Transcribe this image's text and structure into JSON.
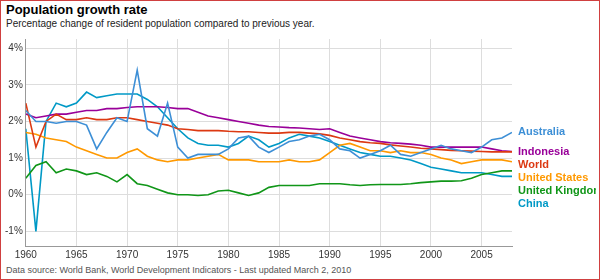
{
  "chart_data": {
    "type": "line",
    "title": "Population growth rate",
    "subtitle": "Percentage change of resident population compared to previous year.",
    "source": "Data source: World Bank, World Development Indicators - Last updated March 2, 2010",
    "x": [
      1960,
      1961,
      1962,
      1963,
      1964,
      1965,
      1966,
      1967,
      1968,
      1969,
      1970,
      1971,
      1972,
      1973,
      1974,
      1975,
      1976,
      1977,
      1978,
      1979,
      1980,
      1981,
      1982,
      1983,
      1984,
      1985,
      1986,
      1987,
      1988,
      1989,
      1990,
      1991,
      1992,
      1993,
      1994,
      1995,
      1996,
      1997,
      1998,
      1999,
      2000,
      2001,
      2002,
      2003,
      2004,
      2005,
      2006,
      2007,
      2008
    ],
    "xlim": [
      1960,
      2008
    ],
    "xticks": [
      1960,
      1965,
      1970,
      1975,
      1980,
      1985,
      1990,
      1995,
      2000,
      2005
    ],
    "ylim": [
      -1.4,
      4.25
    ],
    "yticks": [
      {
        "value": -1,
        "label": "-1%"
      },
      {
        "value": 0,
        "label": "0%"
      },
      {
        "value": 1,
        "label": "1%"
      },
      {
        "value": 2,
        "label": "2%"
      },
      {
        "value": 3,
        "label": "3%"
      },
      {
        "value": 4,
        "label": "4%"
      }
    ],
    "grid": true,
    "legend": "right",
    "series": [
      {
        "name": "Australia",
        "color": "#3d8fd6",
        "values": [
          2.3,
          2.0,
          2.0,
          1.95,
          2.0,
          2.0,
          1.9,
          1.25,
          1.7,
          2.1,
          2.0,
          3.4,
          1.8,
          1.6,
          2.5,
          1.3,
          1.0,
          1.1,
          1.1,
          1.1,
          1.25,
          1.55,
          1.6,
          1.3,
          1.15,
          1.3,
          1.45,
          1.5,
          1.6,
          1.65,
          1.5,
          1.25,
          1.2,
          1.0,
          1.1,
          1.2,
          1.35,
          1.1,
          1.05,
          1.15,
          1.25,
          1.35,
          1.25,
          1.2,
          1.15,
          1.3,
          1.5,
          1.55,
          1.7
        ]
      },
      {
        "name": "World",
        "color": "#dc3912",
        "values": [
          2.5,
          1.3,
          2.0,
          2.2,
          2.05,
          2.05,
          2.1,
          2.05,
          2.05,
          2.1,
          2.1,
          2.05,
          2.0,
          1.95,
          1.9,
          1.8,
          1.78,
          1.75,
          1.75,
          1.75,
          1.73,
          1.72,
          1.72,
          1.7,
          1.68,
          1.68,
          1.7,
          1.7,
          1.68,
          1.66,
          1.62,
          1.55,
          1.5,
          1.45,
          1.42,
          1.4,
          1.36,
          1.33,
          1.3,
          1.27,
          1.25,
          1.23,
          1.21,
          1.2,
          1.19,
          1.18,
          1.17,
          1.17,
          1.17
        ]
      },
      {
        "name": "Indonesia",
        "color": "#990099",
        "values": [
          2.2,
          2.1,
          2.15,
          2.2,
          2.2,
          2.25,
          2.3,
          2.3,
          2.35,
          2.35,
          2.38,
          2.4,
          2.4,
          2.4,
          2.38,
          2.35,
          2.35,
          2.25,
          2.15,
          2.1,
          2.05,
          2.0,
          1.95,
          1.9,
          1.86,
          1.85,
          1.83,
          1.82,
          1.8,
          1.78,
          1.8,
          1.7,
          1.6,
          1.55,
          1.5,
          1.45,
          1.42,
          1.4,
          1.38,
          1.35,
          1.3,
          1.3,
          1.3,
          1.3,
          1.3,
          1.3,
          1.25,
          1.2,
          1.18
        ]
      },
      {
        "name": "United States",
        "color": "#ff9900",
        "values": [
          1.7,
          1.65,
          1.55,
          1.5,
          1.45,
          1.3,
          1.2,
          1.1,
          1.0,
          1.0,
          1.15,
          1.25,
          1.05,
          0.95,
          0.9,
          0.95,
          0.95,
          1.0,
          1.05,
          1.1,
          0.95,
          0.95,
          0.95,
          0.9,
          0.9,
          0.9,
          0.95,
          0.9,
          0.9,
          0.95,
          1.15,
          1.35,
          1.4,
          1.3,
          1.2,
          1.2,
          1.15,
          1.2,
          1.15,
          1.15,
          1.1,
          1.0,
          0.95,
          0.85,
          0.9,
          0.95,
          0.95,
          0.95,
          0.9
        ]
      },
      {
        "name": "United Kingdom",
        "color": "#109618",
        "values": [
          0.45,
          0.8,
          0.9,
          0.6,
          0.7,
          0.65,
          0.55,
          0.6,
          0.5,
          0.35,
          0.55,
          0.3,
          0.25,
          0.15,
          0.05,
          0.0,
          0.0,
          -0.02,
          0.0,
          0.1,
          0.12,
          0.05,
          -0.02,
          0.05,
          0.2,
          0.25,
          0.25,
          0.25,
          0.25,
          0.3,
          0.3,
          0.3,
          0.27,
          0.25,
          0.27,
          0.28,
          0.28,
          0.28,
          0.3,
          0.33,
          0.35,
          0.37,
          0.37,
          0.38,
          0.45,
          0.55,
          0.6,
          0.65,
          0.65
        ]
      },
      {
        "name": "China",
        "color": "#0099c6",
        "values": [
          1.8,
          -1.0,
          2.0,
          2.5,
          2.4,
          2.5,
          2.8,
          2.65,
          2.7,
          2.75,
          2.75,
          2.75,
          2.6,
          2.4,
          2.1,
          1.8,
          1.55,
          1.4,
          1.35,
          1.35,
          1.3,
          1.4,
          1.6,
          1.5,
          1.3,
          1.4,
          1.55,
          1.65,
          1.6,
          1.55,
          1.45,
          1.35,
          1.25,
          1.15,
          1.1,
          1.05,
          1.05,
          1.0,
          0.95,
          0.85,
          0.75,
          0.7,
          0.65,
          0.6,
          0.6,
          0.6,
          0.55,
          0.5,
          0.5
        ]
      }
    ]
  }
}
